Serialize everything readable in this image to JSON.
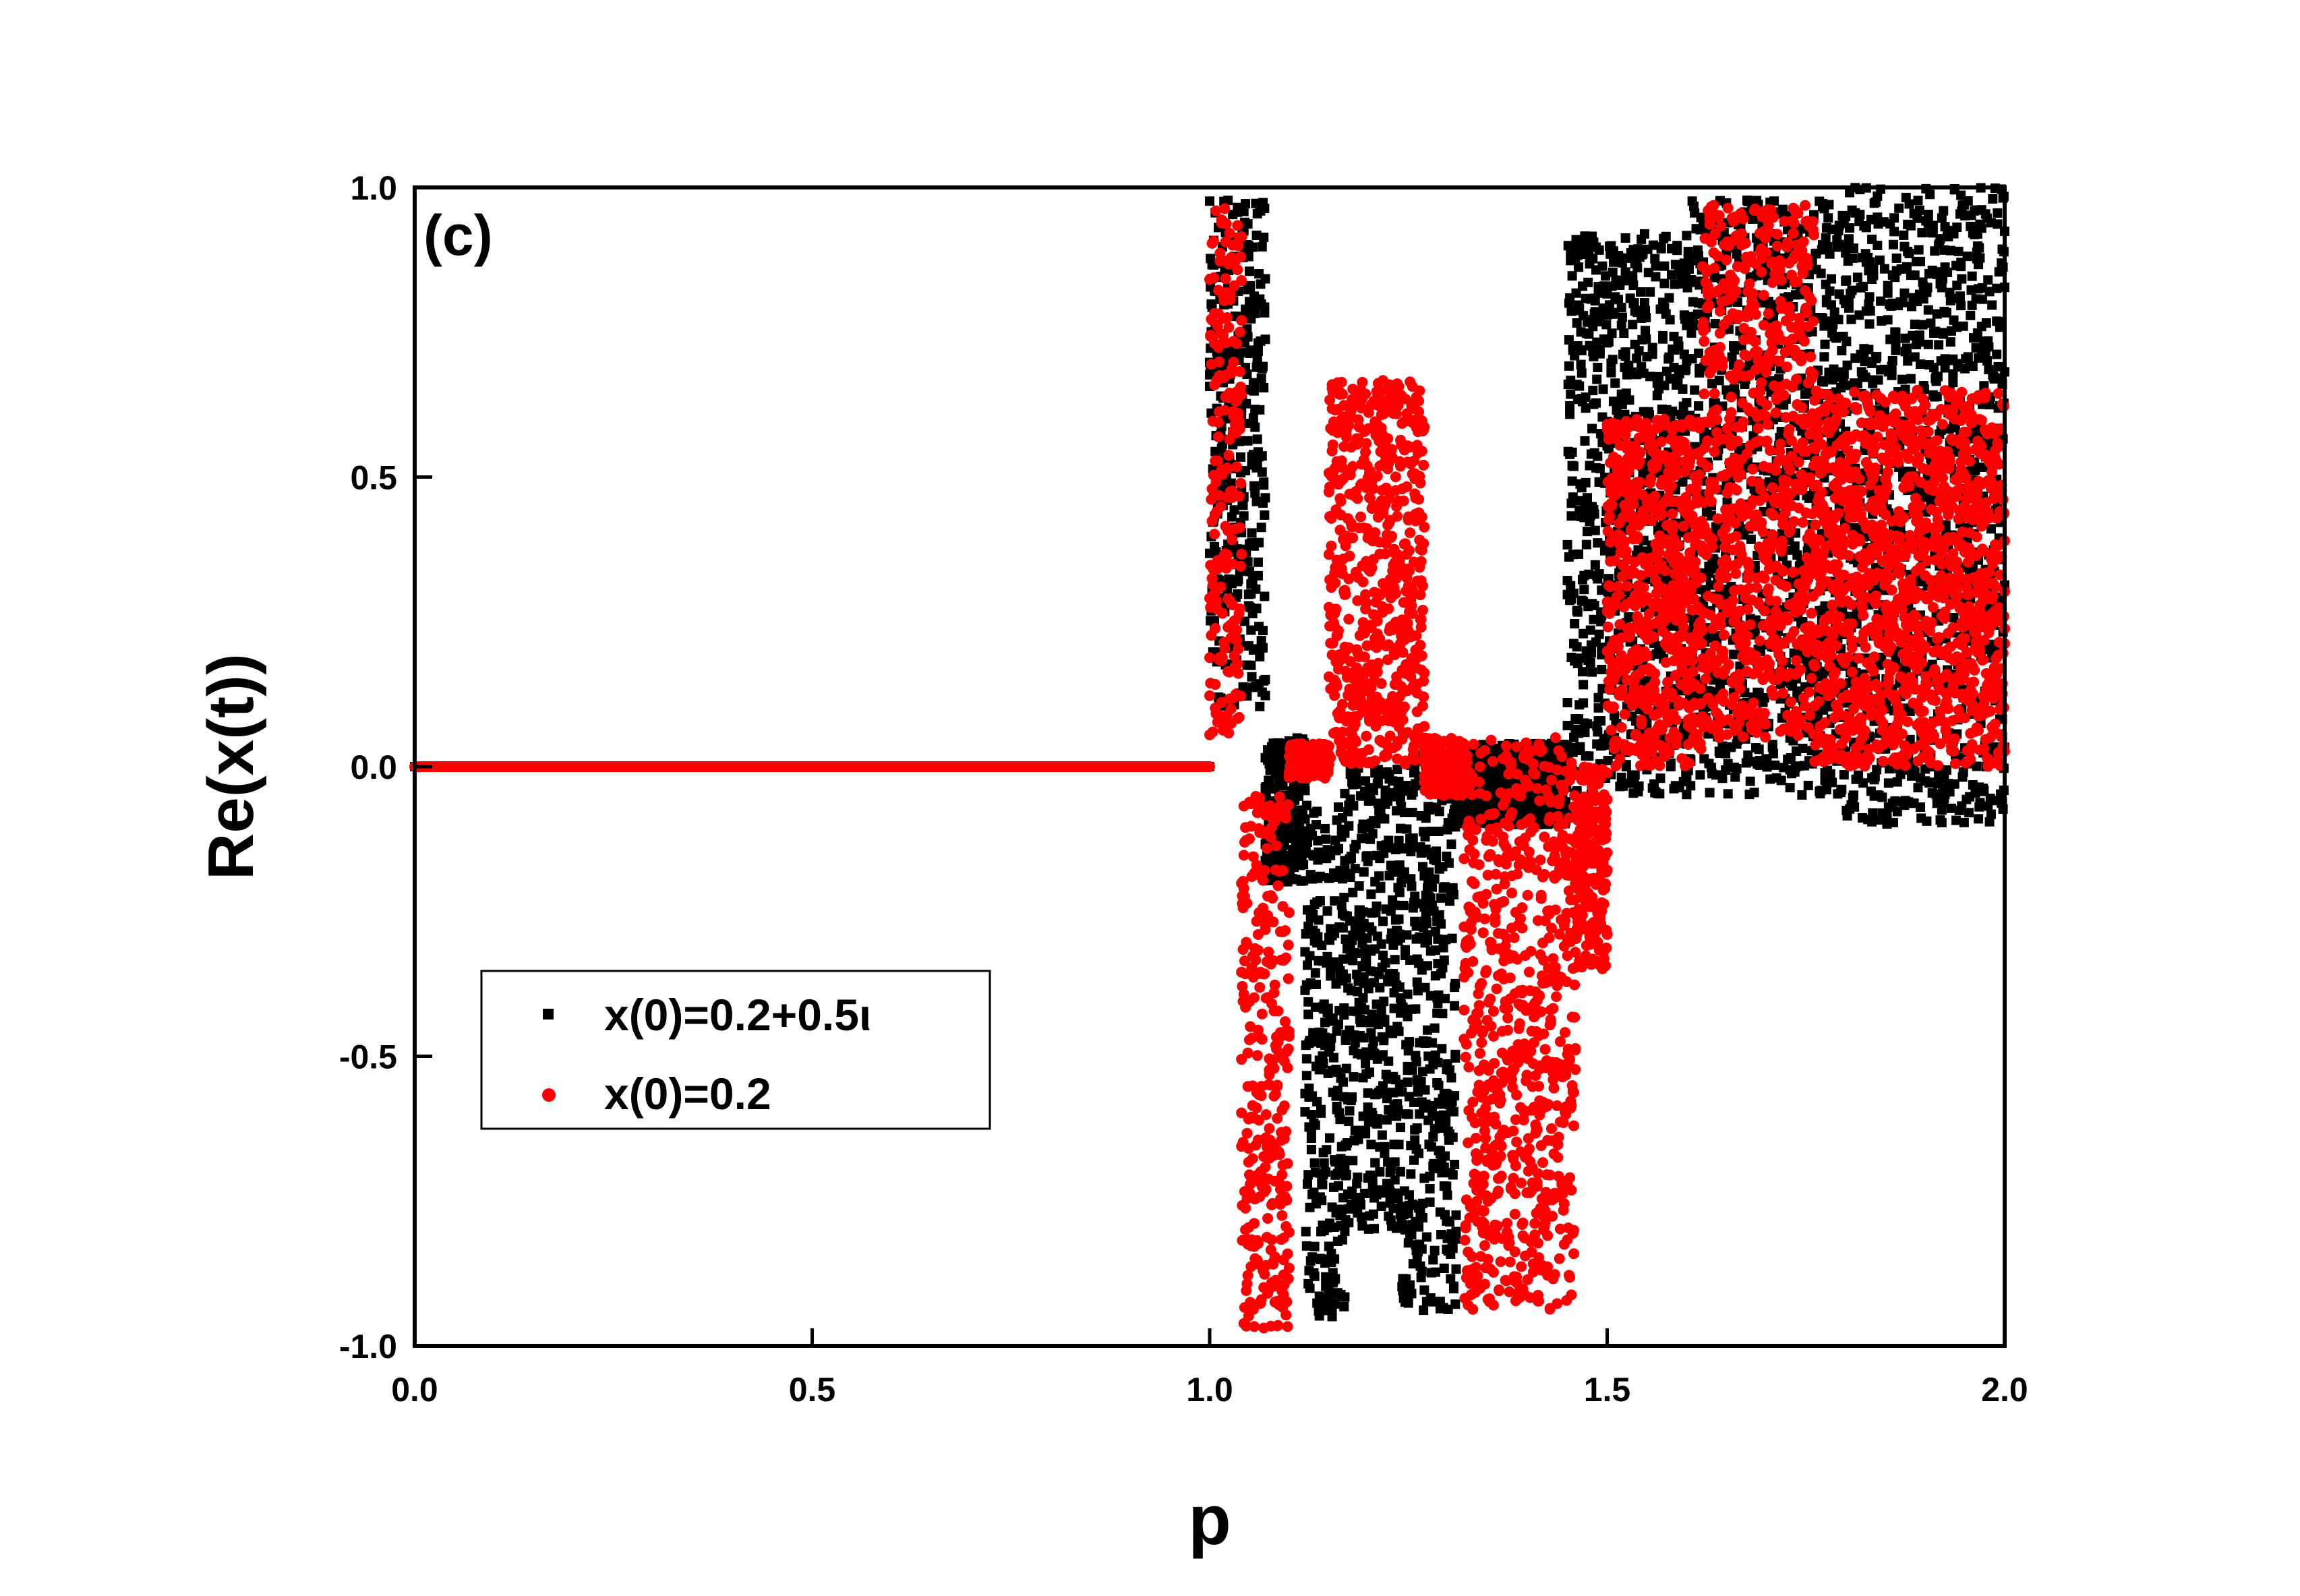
{
  "chart_data": {
    "type": "scatter",
    "panel_label": "(c)",
    "xlabel": "p",
    "ylabel": "Re(x(t))",
    "xlim": [
      0.0,
      2.0
    ],
    "ylim": [
      -1.0,
      1.0
    ],
    "xticks": [
      "0.0",
      "0.5",
      "1.0",
      "1.5",
      "2.0"
    ],
    "yticks": [
      "-1.0",
      "-0.5",
      "0.0",
      "0.5",
      "1.0"
    ],
    "grid": false,
    "legend_position": "lower-left",
    "series": [
      {
        "name": "x(0)=0.2+0.5ι",
        "color": "#000000",
        "marker": "square",
        "bands": [
          {
            "x": [
              0.0,
              1.0
            ],
            "low": 0.0,
            "high": 0.0
          },
          {
            "x": [
              1.0,
              1.07
            ],
            "low": 0.1,
            "high": 0.98
          },
          {
            "x": [
              1.07,
              1.12
            ],
            "low": -0.2,
            "high": 0.05
          },
          {
            "x": [
              1.12,
              1.17
            ],
            "low": -0.95,
            "high": -0.05
          },
          {
            "x": [
              1.17,
              1.24
            ],
            "low": -0.8,
            "high": 0.02
          },
          {
            "x": [
              1.24,
              1.31
            ],
            "low": -0.94,
            "high": 0.02
          },
          {
            "x": [
              1.31,
              1.45
            ],
            "low": -0.1,
            "high": 0.04
          },
          {
            "x": [
              1.45,
              1.5
            ],
            "low": -0.05,
            "high": 0.92
          },
          {
            "x": [
              1.5,
              1.6
            ],
            "low": -0.05,
            "high": 0.92
          },
          {
            "x": [
              1.6,
              1.8
            ],
            "low": -0.05,
            "high": 0.98
          },
          {
            "x": [
              1.8,
              2.0
            ],
            "low": -0.1,
            "high": 1.0
          }
        ]
      },
      {
        "name": "x(0)=0.2",
        "color": "#ff0000",
        "marker": "circle",
        "bands": [
          {
            "x": [
              0.0,
              1.0
            ],
            "low": 0.0,
            "high": 0.0
          },
          {
            "x": [
              1.0,
              1.04
            ],
            "low": 0.05,
            "high": 0.97
          },
          {
            "x": [
              1.04,
              1.1
            ],
            "low": -0.97,
            "high": -0.05
          },
          {
            "x": [
              1.1,
              1.15
            ],
            "low": -0.02,
            "high": 0.04
          },
          {
            "x": [
              1.15,
              1.27
            ],
            "low": 0.0,
            "high": 0.67
          },
          {
            "x": [
              1.27,
              1.32
            ],
            "low": -0.05,
            "high": 0.05
          },
          {
            "x": [
              1.32,
              1.46
            ],
            "low": -0.94,
            "high": 0.05
          },
          {
            "x": [
              1.46,
              1.5
            ],
            "low": -0.35,
            "high": 0.0
          },
          {
            "x": [
              1.5,
              1.62
            ],
            "low": 0.0,
            "high": 0.6
          },
          {
            "x": [
              1.62,
              1.76
            ],
            "low": 0.05,
            "high": 0.97
          },
          {
            "x": [
              1.76,
              2.0
            ],
            "low": 0.0,
            "high": 0.65
          }
        ]
      }
    ]
  }
}
